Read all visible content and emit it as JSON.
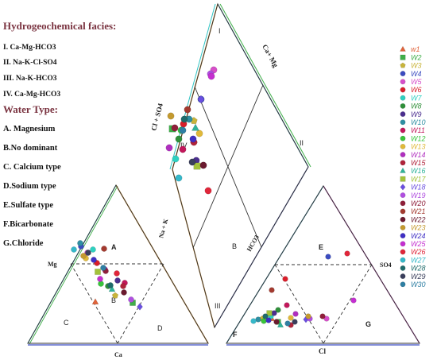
{
  "panel": {
    "facies_title": "Hydrogeochemical facies:",
    "facies": [
      "I. Ca-Mg-HCO3",
      "II. Na-K-Cl-SO4",
      "III. Na-K-HCO3",
      "IV. Ca-Mg-HCO3"
    ],
    "water_type_title": "Water Type:",
    "water_types": [
      "A. Magnesium",
      "B.No dominant",
      "C. Calcium type",
      "D.Sodium type",
      "E.Sulfate type",
      "F.Bicarbonate",
      "G.Chloride"
    ]
  },
  "diagram": {
    "left_triangle": {
      "vertex_labels": {
        "left": "Mg",
        "bottom": "Ca",
        "right": "Na + K"
      },
      "zones": [
        "A",
        "B",
        "C",
        "D"
      ]
    },
    "right_triangle": {
      "vertex_labels": {
        "left": "HCO3",
        "right": "SO4",
        "bottom": "Cl"
      },
      "zones": [
        "E",
        "F",
        "G"
      ]
    },
    "diamond": {
      "labels": [
        "Cl + SO4",
        "Ca+ Mg"
      ],
      "zones": [
        "I",
        "II",
        "III",
        "IV",
        "B"
      ]
    }
  },
  "legend": [
    {
      "name": "w1",
      "color": "#e0633a",
      "shape": "triangle"
    },
    {
      "name": "W2",
      "color": "#3fae49",
      "shape": "square"
    },
    {
      "name": "W3",
      "color": "#c8b43a",
      "shape": "pentagon"
    },
    {
      "name": "W4",
      "color": "#3b4cc0",
      "shape": "circle"
    },
    {
      "name": "W5",
      "color": "#d64fc9",
      "shape": "circle"
    },
    {
      "name": "W6",
      "color": "#d91e2a",
      "shape": "circle"
    },
    {
      "name": "W7",
      "color": "#2fd0c0",
      "shape": "circle"
    },
    {
      "name": "W8",
      "color": "#2f8f3a",
      "shape": "circle"
    },
    {
      "name": "W9",
      "color": "#4b2f8f",
      "shape": "circle"
    },
    {
      "name": "W10",
      "color": "#2f8fa3",
      "shape": "circle"
    },
    {
      "name": "W11",
      "color": "#c2185b",
      "shape": "circle"
    },
    {
      "name": "W12",
      "color": "#39c43c",
      "shape": "circle"
    },
    {
      "name": "W13",
      "color": "#e0b93a",
      "shape": "circle"
    },
    {
      "name": "W14",
      "color": "#b02fbf",
      "shape": "circle"
    },
    {
      "name": "W15",
      "color": "#b0233a",
      "shape": "circle"
    },
    {
      "name": "W16",
      "color": "#2fb39a",
      "shape": "triangle"
    },
    {
      "name": "W17",
      "color": "#a3c23a",
      "shape": "square"
    },
    {
      "name": "W18",
      "color": "#6a4fe0",
      "shape": "diamond"
    },
    {
      "name": "W19",
      "color": "#b04fe0",
      "shape": "circle"
    },
    {
      "name": "W20",
      "color": "#8f1f3a",
      "shape": "circle"
    },
    {
      "name": "W21",
      "color": "#a33a2f",
      "shape": "circle"
    },
    {
      "name": "W22",
      "color": "#6b1a2f",
      "shape": "circle"
    },
    {
      "name": "W23",
      "color": "#c49a2f",
      "shape": "circle"
    },
    {
      "name": "W24",
      "color": "#3f2fc4",
      "shape": "circle"
    },
    {
      "name": "W25",
      "color": "#c42fd0",
      "shape": "circle"
    },
    {
      "name": "W26",
      "color": "#e0263a",
      "shape": "circle"
    },
    {
      "name": "W27",
      "color": "#36b8c9",
      "shape": "circle"
    },
    {
      "name": "W28",
      "color": "#1f6b6b",
      "shape": "circle"
    },
    {
      "name": "W29",
      "color": "#3a3f5c",
      "shape": "circle"
    },
    {
      "name": "W30",
      "color": "#2f7fa3",
      "shape": "circle"
    }
  ]
}
